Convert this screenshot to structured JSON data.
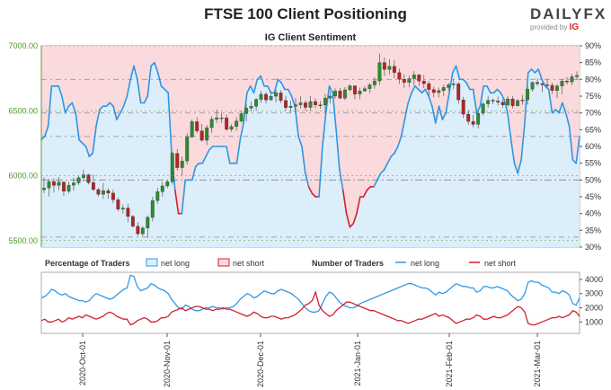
{
  "header": {
    "title": "FTSE 100 Client Positioning"
  },
  "brand": {
    "word": "DAILYFX",
    "provided_by": "provided by",
    "ig": "IG"
  },
  "chart_data": [
    {
      "type": "line",
      "title": "IG Client Sentiment",
      "left_axis": {
        "ticks": [
          "7000.00",
          "6500.00",
          "6000.00",
          "5500.00"
        ],
        "ylim": [
          5450,
          7000
        ]
      },
      "right_axis": {
        "ticks": [
          "90%",
          "85%",
          "80%",
          "75%",
          "70%",
          "65%",
          "60%",
          "55%",
          "50%",
          "45%",
          "40%",
          "35%",
          "30%"
        ],
        "ylim": [
          30,
          90
        ]
      },
      "reference_lines_pct": [
        80,
        70,
        63,
        50,
        50,
        33
      ],
      "net_long_pct": [
        62,
        63,
        66,
        78,
        78,
        78,
        75,
        70,
        72,
        73,
        70,
        62,
        61,
        60,
        57,
        58,
        66,
        71,
        72,
        72,
        73,
        72,
        68,
        70,
        72,
        75,
        80,
        84,
        80,
        73,
        73,
        75,
        84,
        85,
        82,
        78,
        77,
        76,
        58,
        47,
        40,
        40,
        50,
        50,
        50,
        54,
        55,
        55,
        57,
        59,
        60,
        60,
        60,
        60,
        60,
        55,
        55,
        55,
        62,
        67,
        76,
        78,
        76,
        80,
        81,
        78,
        78,
        76,
        76,
        80,
        79,
        77,
        77,
        75,
        72,
        63,
        60,
        52,
        48,
        46,
        45,
        45,
        60,
        70,
        78,
        76,
        65,
        53,
        47,
        40,
        36,
        37,
        40,
        45,
        45,
        47,
        48,
        48,
        50,
        52,
        53,
        55,
        57,
        58,
        60,
        63,
        68,
        73,
        76,
        78,
        77,
        76,
        77,
        75,
        72,
        67,
        72,
        68,
        70,
        76,
        82,
        84,
        80,
        80,
        79,
        77,
        77,
        70,
        72,
        78,
        78,
        76,
        76,
        77,
        76,
        74,
        70,
        62,
        55,
        52,
        56,
        67,
        82,
        83,
        82,
        83,
        80,
        78,
        77,
        70,
        71,
        70,
        73,
        70,
        66,
        56,
        55,
        63
      ],
      "price_candles": [
        [
          5892,
          5985,
          5865,
          5905
        ],
        [
          5905,
          5975,
          5840,
          5955
        ],
        [
          5955,
          5980,
          5870,
          5925
        ],
        [
          5925,
          5990,
          5888,
          5951
        ],
        [
          5951,
          5955,
          5844,
          5880
        ],
        [
          5880,
          5955,
          5862,
          5927
        ],
        [
          5927,
          5985,
          5885,
          5945
        ],
        [
          5945,
          6002,
          5927,
          5985
        ],
        [
          5985,
          6046,
          5955,
          6007
        ],
        [
          6007,
          6013,
          5933,
          5947
        ],
        [
          5947,
          6006,
          5883,
          5893
        ],
        [
          5893,
          5906,
          5840,
          5856
        ],
        [
          5856,
          5945,
          5822,
          5885
        ],
        [
          5885,
          5904,
          5823,
          5866
        ],
        [
          5866,
          5891,
          5788,
          5815
        ],
        [
          5815,
          5833,
          5726,
          5742
        ],
        [
          5742,
          5779,
          5709,
          5751
        ],
        [
          5751,
          5785,
          5641,
          5686
        ],
        [
          5686,
          5698,
          5601,
          5611
        ],
        [
          5611,
          5643,
          5537,
          5553
        ],
        [
          5553,
          5611,
          5534,
          5597
        ],
        [
          5597,
          5694,
          5522,
          5679
        ],
        [
          5679,
          5838,
          5648,
          5808
        ],
        [
          5808,
          5906,
          5781,
          5877
        ],
        [
          5877,
          5954,
          5838,
          5921
        ],
        [
          5921,
          5965,
          5903,
          5954
        ],
        [
          5954,
          6183,
          5932,
          6171
        ],
        [
          6171,
          6205,
          6039,
          6062
        ],
        [
          6062,
          6148,
          6003,
          6113
        ],
        [
          6113,
          6327,
          6086,
          6298
        ],
        [
          6298,
          6432,
          6292,
          6416
        ],
        [
          6416,
          6451,
          6328,
          6345
        ],
        [
          6345,
          6398,
          6262,
          6273
        ],
        [
          6273,
          6390,
          6235,
          6370
        ],
        [
          6370,
          6457,
          6330,
          6435
        ],
        [
          6435,
          6509,
          6407,
          6446
        ],
        [
          6446,
          6487,
          6406,
          6446
        ],
        [
          6446,
          6472,
          6347,
          6357
        ],
        [
          6357,
          6397,
          6339,
          6378
        ],
        [
          6378,
          6452,
          6346,
          6421
        ],
        [
          6421,
          6502,
          6409,
          6478
        ],
        [
          6478,
          6550,
          6420,
          6520
        ],
        [
          6520,
          6570,
          6494,
          6534
        ],
        [
          6534,
          6598,
          6500,
          6587
        ],
        [
          6587,
          6654,
          6561,
          6627
        ],
        [
          6627,
          6644,
          6555,
          6584
        ],
        [
          6584,
          6648,
          6578,
          6612
        ],
        [
          6612,
          6664,
          6563,
          6638
        ],
        [
          6638,
          6659,
          6560,
          6579
        ],
        [
          6579,
          6614,
          6501,
          6524
        ],
        [
          6524,
          6577,
          6482,
          6535
        ],
        [
          6535,
          6598,
          6490,
          6546
        ],
        [
          6546,
          6611,
          6518,
          6561
        ],
        [
          6561,
          6579,
          6499,
          6526
        ],
        [
          6526,
          6615,
          6499,
          6571
        ],
        [
          6571,
          6596,
          6521,
          6545
        ],
        [
          6545,
          6575,
          6516,
          6544
        ],
        [
          6544,
          6629,
          6489,
          6597
        ],
        [
          6597,
          6651,
          6556,
          6613
        ],
        [
          6613,
          6672,
          6593,
          6652
        ],
        [
          6652,
          6676,
          6589,
          6597
        ],
        [
          6597,
          6682,
          6582,
          6661
        ],
        [
          6661,
          6703,
          6651,
          6692
        ],
        [
          6692,
          6694,
          6588,
          6628
        ],
        [
          6628,
          6678,
          6589,
          6652
        ],
        [
          6652,
          6690,
          6646,
          6670
        ],
        [
          6670,
          6713,
          6634,
          6699
        ],
        [
          6699,
          6759,
          6670,
          6730
        ],
        [
          6730,
          6940,
          6698,
          6871
        ],
        [
          6871,
          6909,
          6768,
          6818
        ],
        [
          6818,
          6897,
          6781,
          6842
        ],
        [
          6842,
          6889,
          6751,
          6794
        ],
        [
          6794,
          6824,
          6707,
          6742
        ],
        [
          6742,
          6781,
          6677,
          6718
        ],
        [
          6718,
          6771,
          6681,
          6747
        ],
        [
          6747,
          6805,
          6694,
          6777
        ],
        [
          6777,
          6781,
          6690,
          6729
        ],
        [
          6729,
          6776,
          6675,
          6709
        ],
        [
          6709,
          6727,
          6616,
          6663
        ],
        [
          6663,
          6686,
          6604,
          6640
        ],
        [
          6640,
          6678,
          6602,
          6655
        ],
        [
          6655,
          6700,
          6614,
          6679
        ],
        [
          6679,
          6716,
          6655,
          6700
        ],
        [
          6700,
          6745,
          6666,
          6708
        ],
        [
          6708,
          6722,
          6554,
          6584
        ],
        [
          6584,
          6608,
          6444,
          6474
        ],
        [
          6474,
          6507,
          6393,
          6418
        ],
        [
          6418,
          6467,
          6373,
          6395
        ],
        [
          6395,
          6503,
          6363,
          6481
        ],
        [
          6481,
          6567,
          6462,
          6553
        ],
        [
          6553,
          6615,
          6524,
          6581
        ],
        [
          6581,
          6596,
          6550,
          6575
        ],
        [
          6575,
          6610,
          6542,
          6566
        ],
        [
          6566,
          6590,
          6522,
          6545
        ],
        [
          6545,
          6612,
          6532,
          6591
        ],
        [
          6591,
          6615,
          6519,
          6539
        ],
        [
          6539,
          6590,
          6532,
          6578
        ],
        [
          6578,
          6620,
          6547,
          6584
        ],
        [
          6584,
          6689,
          6548,
          6666
        ],
        [
          6666,
          6726,
          6649,
          6719
        ],
        [
          6719,
          6749,
          6691,
          6709
        ],
        [
          6709,
          6721,
          6643,
          6700
        ],
        [
          6700,
          6747,
          6678,
          6696
        ],
        [
          6696,
          6716,
          6630,
          6656
        ],
        [
          6656,
          6705,
          6599,
          6690
        ],
        [
          6690,
          6746,
          6626,
          6729
        ],
        [
          6729,
          6760,
          6702,
          6721
        ],
        [
          6721,
          6784,
          6697,
          6762
        ],
        [
          6762,
          6803,
          6741,
          6772
        ]
      ],
      "price_x_count": 118
    },
    {
      "type": "line",
      "legend": [
        {
          "label": "Percentage of Traders"
        },
        {
          "label": "net long",
          "color": "#3399e6"
        },
        {
          "label": "net short",
          "color": "#d22030"
        },
        {
          "label": "Number of Traders"
        },
        {
          "label": "net long",
          "color": "#3399e6"
        },
        {
          "label": "net short",
          "color": "#d22030"
        }
      ],
      "right_axis": {
        "ticks": [
          "4000",
          "3000",
          "2000",
          "1000"
        ],
        "ylim": [
          200,
          4500
        ]
      },
      "net_long_count": [
        2700,
        2800,
        3000,
        3300,
        3200,
        3000,
        2900,
        3000,
        2800,
        2700,
        2600,
        2500,
        2500,
        2400,
        2500,
        2800,
        3000,
        2900,
        2800,
        2700,
        2600,
        2700,
        2900,
        3100,
        3300,
        3400,
        4300,
        4200,
        3500,
        3200,
        3300,
        3400,
        3700,
        3600,
        3400,
        3300,
        3200,
        3000,
        2600,
        2300,
        2000,
        1900,
        2200,
        2100,
        1900,
        1800,
        1800,
        1900,
        2000,
        2000,
        2100,
        2000,
        2000,
        1900,
        2000,
        2000,
        2100,
        2300,
        2600,
        2800,
        3000,
        2900,
        2700,
        2800,
        3000,
        3200,
        3100,
        3000,
        3000,
        3200,
        3300,
        3200,
        3100,
        3000,
        2800,
        2600,
        2300,
        2000,
        1800,
        1700,
        1700,
        1800,
        2300,
        2800,
        3100,
        3000,
        2700,
        2400,
        2200,
        2100,
        2000,
        2000,
        2100,
        2300,
        2400,
        2500,
        2600,
        2700,
        2800,
        2900,
        3000,
        3100,
        3200,
        3300,
        3400,
        3500,
        3600,
        3700,
        3700,
        3600,
        3500,
        3400,
        3400,
        3300,
        3100,
        2900,
        3100,
        3000,
        3100,
        3300,
        3500,
        3700,
        3600,
        3500,
        3500,
        3400,
        3400,
        3100,
        3200,
        3500,
        3500,
        3400,
        3400,
        3500,
        3400,
        3300,
        3200,
        2900,
        2700,
        2500,
        2600,
        3000,
        3800,
        3900,
        3800,
        3800,
        3600,
        3500,
        3400,
        3100,
        3100,
        3000,
        3200,
        3100,
        2900,
        2300,
        2200,
        2700
      ],
      "net_short_count": [
        1100,
        1200,
        1000,
        1000,
        1100,
        1200,
        1000,
        1100,
        1300,
        1200,
        1300,
        1400,
        1300,
        1500,
        1400,
        1300,
        1200,
        1300,
        1400,
        1600,
        1700,
        1600,
        1400,
        1300,
        1200,
        1200,
        800,
        900,
        1100,
        1200,
        1300,
        1200,
        1000,
        1000,
        1100,
        1300,
        1300,
        1400,
        1700,
        1800,
        1900,
        2000,
        1800,
        1900,
        2000,
        2100,
        2100,
        2000,
        1900,
        1900,
        1800,
        1900,
        1900,
        2000,
        1900,
        1900,
        1800,
        1700,
        1600,
        1500,
        1400,
        1500,
        1700,
        1600,
        1400,
        1300,
        1300,
        1400,
        1400,
        1300,
        1200,
        1300,
        1300,
        1400,
        1500,
        1700,
        1900,
        2200,
        2300,
        2500,
        3100,
        2200,
        1800,
        1600,
        1400,
        1500,
        1800,
        2000,
        2200,
        2400,
        2400,
        2300,
        2200,
        2100,
        2000,
        1900,
        1800,
        1800,
        1700,
        1600,
        1500,
        1400,
        1300,
        1200,
        1100,
        1100,
        1000,
        900,
        1000,
        1100,
        1200,
        1200,
        1300,
        1400,
        1500,
        1600,
        1400,
        1500,
        1400,
        1300,
        1100,
        900,
        1000,
        1100,
        1200,
        1200,
        1300,
        1500,
        1400,
        1200,
        1200,
        1300,
        1400,
        1300,
        1300,
        1400,
        1500,
        1700,
        1900,
        2100,
        2000,
        1700,
        900,
        800,
        800,
        900,
        1000,
        1100,
        1200,
        1300,
        1300,
        1400,
        1300,
        1400,
        1500,
        1800,
        1700,
        1400
      ],
      "x_tick_labels": [
        "2020-Oct-01",
        "2020-Nov-01",
        "2020-Dec-01",
        "2021-Jan-01",
        "2021-Feb-01",
        "2021-Mar-01"
      ]
    }
  ]
}
